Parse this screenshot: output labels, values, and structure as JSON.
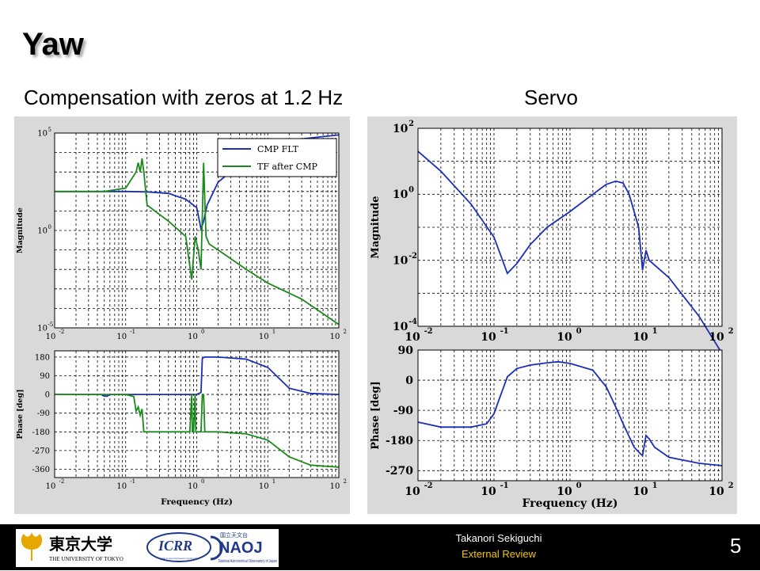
{
  "slide": {
    "title": "Yaw",
    "subtitle_left": "Compensation with zeros at 1.2 Hz",
    "subtitle_right": "Servo",
    "footer_name": "Takanori Sekiguchi",
    "footer_sub": "External Review",
    "page_number": "5",
    "logo_text": {
      "utokyo_kanji": "東京大学",
      "utokyo_en": "THE UNIVERSITY OF TOKYO",
      "icrr": "ICRR",
      "icrr_sub": "Institute for Cosmic Ray Research, University of Tokyo",
      "naoj": "NAOJ",
      "naoj_jp": "国立天文台",
      "naoj_en": "National Astronomical Observatory of Japan"
    }
  },
  "colors": {
    "cmp": "#1a2eb8",
    "tf": "#1a8a1a",
    "servo": "#1a2eb8",
    "panel_bg": "#d9d9d9"
  },
  "chart_data": [
    {
      "id": "compensation-magnitude",
      "type": "line",
      "xscale": "log",
      "yscale": "log",
      "xlim": [
        0.01,
        100
      ],
      "ylim": [
        1e-05,
        100000.0
      ],
      "xticks": [
        0.01,
        0.1,
        1,
        10,
        100
      ],
      "xtick_labels": [
        [
          "10",
          "-2"
        ],
        [
          "10",
          "-1"
        ],
        [
          "10",
          "0"
        ],
        [
          "10",
          "1"
        ],
        [
          "10",
          "2"
        ]
      ],
      "yticks": [
        1e-05,
        1,
        100000.0
      ],
      "ytick_labels": [
        [
          "10",
          "-5"
        ],
        [
          "10",
          "0"
        ],
        [
          "10",
          "5"
        ]
      ],
      "ylabel": "Magnitude",
      "legend": "top-right",
      "series": [
        {
          "name": "CMP FLT",
          "color_key": "cmp",
          "x": [
            0.01,
            0.05,
            0.1,
            0.2,
            0.4,
            0.7,
            1.0,
            1.15,
            1.25,
            1.4,
            2,
            5,
            10,
            30,
            100
          ],
          "y": [
            100,
            100,
            100,
            95,
            80,
            40,
            15,
            1.2,
            3,
            20,
            300,
            5000,
            20000,
            50000,
            80000
          ]
        },
        {
          "name": "TF after CMP",
          "color_key": "tf",
          "x": [
            0.01,
            0.05,
            0.1,
            0.14,
            0.15,
            0.16,
            0.17,
            0.18,
            0.2,
            0.4,
            0.7,
            0.85,
            0.95,
            1.05,
            1.15,
            1.25,
            1.35,
            1.5,
            2,
            5,
            10,
            30,
            100
          ],
          "y": [
            100,
            100,
            150,
            1000,
            3000,
            1000,
            5000,
            1000,
            20,
            3,
            0.5,
            0.003,
            0.5,
            0.1,
            0.01,
            3000,
            0.5,
            0.2,
            0.1,
            0.01,
            0.002,
            0.0003,
            1.5e-05
          ]
        }
      ]
    },
    {
      "id": "compensation-phase",
      "type": "line",
      "xscale": "log",
      "yscale": "linear",
      "xlim": [
        0.01,
        100
      ],
      "ylim": [
        -400,
        210
      ],
      "xticks": [
        0.01,
        0.1,
        1,
        10,
        100
      ],
      "xtick_labels": [
        [
          "10",
          "-2"
        ],
        [
          "10",
          "-1"
        ],
        [
          "10",
          "0"
        ],
        [
          "10",
          "1"
        ],
        [
          "10",
          "2"
        ]
      ],
      "yticks": [
        180,
        90,
        0,
        -90,
        -180,
        -270,
        -360
      ],
      "ytick_labels": [
        "180",
        "90",
        "0",
        "-90",
        "-180",
        "-270",
        "-360"
      ],
      "xlabel": "Frequency (Hz)",
      "ylabel": "Phase [deg]",
      "series": [
        {
          "name": "CMP FLT",
          "color_key": "cmp",
          "x": [
            0.01,
            0.045,
            0.05,
            0.055,
            0.06,
            0.1,
            0.5,
            1.0,
            1.15,
            1.2,
            1.3,
            2,
            5,
            10,
            20,
            40,
            100
          ],
          "y": [
            0,
            0,
            -8,
            -8,
            0,
            0,
            0,
            0,
            10,
            175,
            180,
            180,
            170,
            130,
            30,
            5,
            0
          ]
        },
        {
          "name": "TF after CMP",
          "color_key": "tf",
          "x": [
            0.01,
            0.1,
            0.13,
            0.14,
            0.15,
            0.16,
            0.17,
            0.18,
            0.2,
            0.8,
            0.85,
            0.87,
            0.9,
            0.95,
            0.97,
            1.0,
            1.05,
            1.15,
            1.2,
            1.25,
            1.3,
            2,
            5,
            10,
            20,
            40,
            100
          ],
          "y": [
            0,
            0,
            -10,
            -80,
            -60,
            -100,
            -70,
            -180,
            -180,
            -180,
            0,
            -180,
            -180,
            0,
            -180,
            -180,
            -180,
            -180,
            0,
            0,
            -180,
            -180,
            -190,
            -220,
            -300,
            -340,
            -350
          ]
        }
      ]
    },
    {
      "id": "servo-magnitude",
      "type": "line",
      "xscale": "log",
      "yscale": "log",
      "xlim": [
        0.01,
        100
      ],
      "ylim": [
        0.0001,
        100
      ],
      "xticks": [
        0.01,
        0.1,
        1,
        10,
        100
      ],
      "xtick_labels": [
        [
          "10",
          "-2"
        ],
        [
          "10",
          "-1"
        ],
        [
          "10",
          "0"
        ],
        [
          "10",
          "1"
        ],
        [
          "10",
          "2"
        ]
      ],
      "yticks": [
        0.0001,
        0.01,
        1,
        100
      ],
      "ytick_labels": [
        [
          "10",
          "-4"
        ],
        [
          "10",
          "-2"
        ],
        [
          "10",
          "0"
        ],
        [
          "10",
          "2"
        ]
      ],
      "ylabel": "Magnitude",
      "series": [
        {
          "name": "",
          "color_key": "servo",
          "x": [
            0.01,
            0.02,
            0.05,
            0.1,
            0.15,
            0.2,
            0.3,
            0.5,
            1,
            2,
            3,
            4,
            5,
            6,
            8,
            9,
            10,
            11,
            20,
            50,
            100
          ],
          "y": [
            20,
            5,
            0.5,
            0.05,
            0.004,
            0.008,
            0.03,
            0.1,
            0.3,
            1,
            2,
            2.5,
            2.2,
            1,
            0.1,
            0.005,
            0.02,
            0.01,
            0.003,
            0.0002,
            1.5e-05
          ]
        }
      ]
    },
    {
      "id": "servo-phase",
      "type": "line",
      "xscale": "log",
      "yscale": "linear",
      "xlim": [
        0.01,
        100
      ],
      "ylim": [
        -300,
        90
      ],
      "xticks": [
        0.01,
        0.1,
        1,
        10,
        100
      ],
      "xtick_labels": [
        [
          "10",
          "-2"
        ],
        [
          "10",
          "-1"
        ],
        [
          "10",
          "0"
        ],
        [
          "10",
          "1"
        ],
        [
          "10",
          "2"
        ]
      ],
      "yticks": [
        90,
        0,
        -90,
        -180,
        -270
      ],
      "ytick_labels": [
        "90",
        "0",
        "-90",
        "-180",
        "-270"
      ],
      "xlabel": "Frequency (Hz)",
      "ylabel": "Phase [deg]",
      "series": [
        {
          "name": "",
          "color_key": "servo",
          "x": [
            0.01,
            0.02,
            0.05,
            0.08,
            0.1,
            0.12,
            0.15,
            0.2,
            0.3,
            0.5,
            0.7,
            1,
            2,
            3,
            4,
            5,
            7,
            8.5,
            9,
            10,
            11,
            13,
            20,
            50,
            100
          ],
          "y": [
            -125,
            -140,
            -140,
            -130,
            -100,
            -50,
            10,
            35,
            45,
            52,
            55,
            50,
            30,
            -20,
            -80,
            -130,
            -200,
            -220,
            -225,
            -165,
            -175,
            -200,
            -230,
            -248,
            -255
          ]
        }
      ]
    }
  ]
}
